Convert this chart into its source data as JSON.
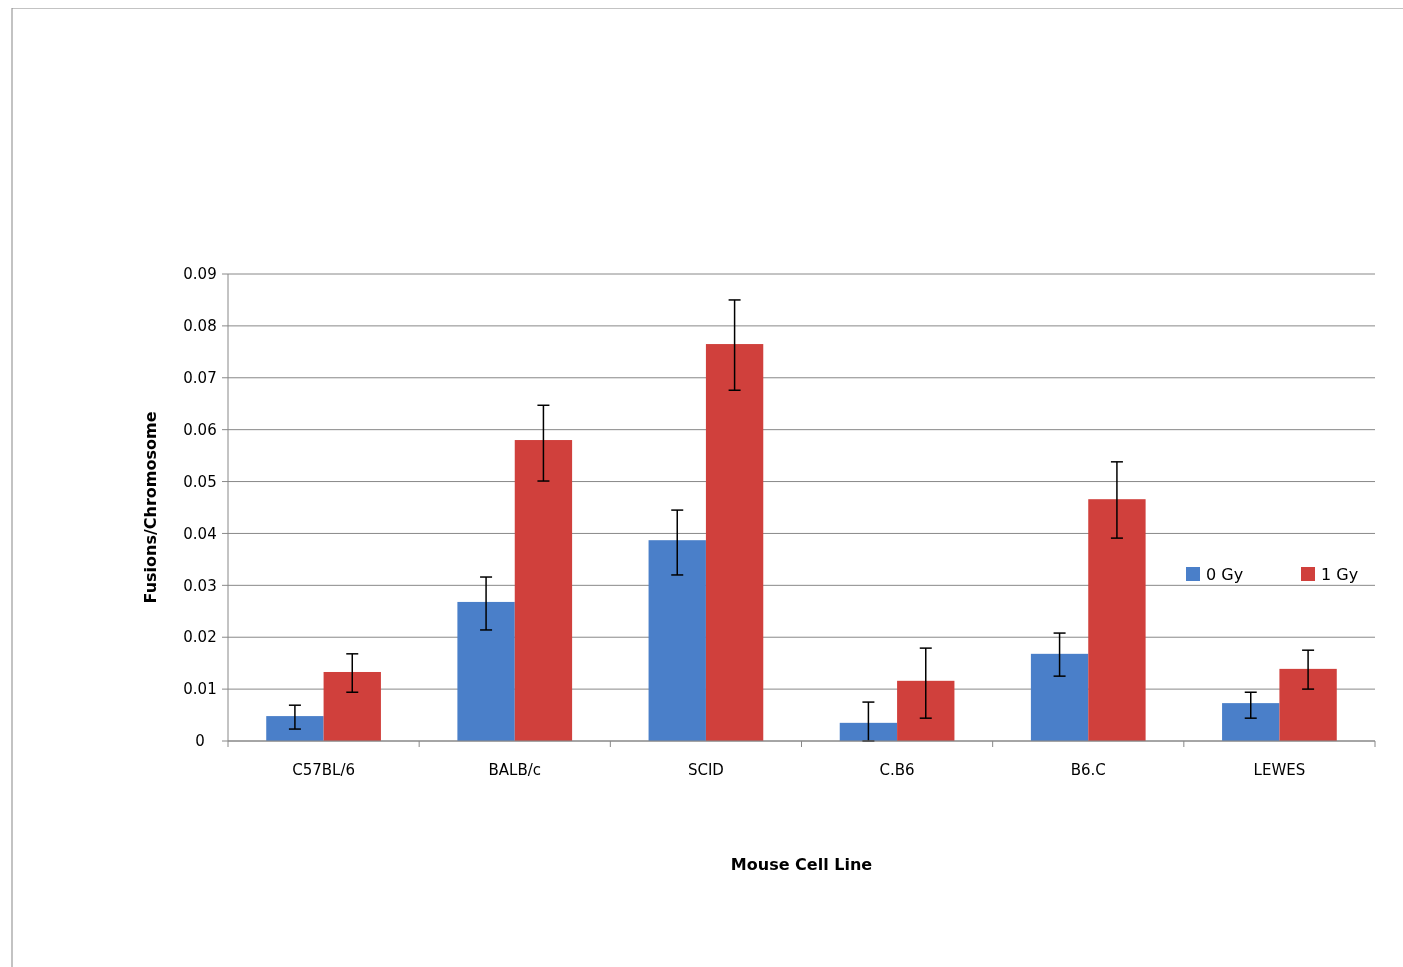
{
  "chart_data": {
    "type": "bar",
    "xlabel": "Mouse Cell Line",
    "ylabel": "Fusions/Chromosome",
    "categories": [
      "C57BL/6",
      "BALB/c",
      "SCID",
      "C.B6",
      "B6.C",
      "LEWES"
    ],
    "series": [
      {
        "name": "0 Gy",
        "color": "#4a7fc9",
        "values": [
          0.0048,
          0.0268,
          0.0387,
          0.0035,
          0.0168,
          0.0073
        ],
        "errors": [
          [
            0.0023,
            0.0069
          ],
          [
            0.0214,
            0.0316
          ],
          [
            0.032,
            0.0445
          ],
          [
            0,
            0.0075
          ],
          [
            0.0125,
            0.0208
          ],
          [
            0.0044,
            0.0094
          ]
        ]
      },
      {
        "name": "1 Gy",
        "color": "#d0403c",
        "values": [
          0.0133,
          0.058,
          0.0765,
          0.0116,
          0.0466,
          0.0139
        ],
        "errors": [
          [
            0.0094,
            0.0168
          ],
          [
            0.0501,
            0.0647
          ],
          [
            0.0676,
            0.085
          ],
          [
            0.0044,
            0.0179
          ],
          [
            0.0391,
            0.0538
          ],
          [
            0.01,
            0.0175
          ]
        ]
      }
    ],
    "ylim": [
      0,
      0.09
    ],
    "yticks": [
      0,
      0.01,
      0.02,
      0.03,
      0.04,
      0.05,
      0.06,
      0.07,
      0.08,
      0.09
    ],
    "grid": "y",
    "legend": "right"
  }
}
